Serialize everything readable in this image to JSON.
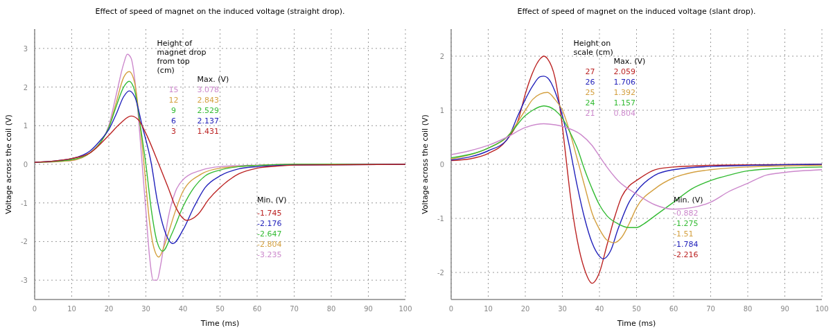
{
  "chart_data": [
    {
      "type": "line",
      "title": "Effect of speed of magnet on the induced voltage (straight drop).",
      "xlabel": "Time (ms)",
      "ylabel": "Voltage across the coil (V)",
      "legend_title": "Height of magnet drop from top (cm)",
      "legend": "top",
      "grid": true,
      "xlim": [
        0,
        100
      ],
      "ylim": [
        -3.5,
        3.5
      ],
      "xticks": [
        0,
        10,
        20,
        30,
        40,
        50,
        60,
        70,
        80,
        90,
        100
      ],
      "yticks": [
        -3,
        -2,
        -1,
        0,
        1,
        2,
        3
      ],
      "annotations": [
        "Max. (V)",
        "3.078",
        "2.843",
        "2.529",
        "2.137",
        "1.431",
        "Min. (V)",
        "-1.745",
        "-2.176",
        "-2.647",
        "-2.804",
        "-3.235"
      ],
      "series": [
        {
          "name": "15",
          "color": "#cc88cc",
          "x": [
            0,
            10,
            15,
            18,
            20,
            22,
            24,
            25,
            26,
            27,
            28,
            29,
            30,
            31,
            32,
            33,
            34,
            35,
            36,
            38,
            40,
            45,
            50,
            60,
            70,
            100
          ],
          "values": [
            0.05,
            0.1,
            0.3,
            0.6,
            1.0,
            1.8,
            2.6,
            2.85,
            2.75,
            2.2,
            1.2,
            0,
            -1.2,
            -2.4,
            -3.0,
            -3.0,
            -2.6,
            -2.0,
            -1.4,
            -0.7,
            -0.4,
            -0.15,
            -0.06,
            -0.02,
            0,
            0
          ]
        },
        {
          "name": "12",
          "color": "#d4a040",
          "x": [
            0,
            10,
            15,
            18,
            20,
            22,
            24,
            25.5,
            27,
            28,
            29.5,
            31,
            32,
            33.5,
            35,
            36,
            38,
            40,
            45,
            50,
            60,
            70,
            100
          ],
          "values": [
            0.05,
            0.1,
            0.3,
            0.6,
            0.95,
            1.6,
            2.25,
            2.4,
            2.1,
            1.4,
            0,
            -1.5,
            -2.1,
            -2.4,
            -2.1,
            -1.8,
            -1.2,
            -0.7,
            -0.25,
            -0.1,
            -0.03,
            0,
            0
          ]
        },
        {
          "name": "9",
          "color": "#33bb33",
          "x": [
            0,
            10,
            15,
            18,
            20,
            22,
            24,
            25.5,
            27,
            28.5,
            30,
            31.5,
            33,
            34.5,
            37,
            40,
            43,
            46,
            50,
            55,
            60,
            70,
            100
          ],
          "values": [
            0.05,
            0.12,
            0.3,
            0.6,
            0.95,
            1.5,
            2.0,
            2.15,
            1.9,
            1.0,
            0,
            -1.2,
            -2.0,
            -2.25,
            -1.8,
            -1.1,
            -0.6,
            -0.3,
            -0.15,
            -0.06,
            -0.03,
            0,
            0
          ]
        },
        {
          "name": "6",
          "color": "#2222bb",
          "x": [
            0,
            10,
            15,
            18,
            20,
            22,
            24,
            25.5,
            27,
            29,
            31.5,
            33,
            35,
            37.3,
            40,
            43,
            46,
            50,
            55,
            60,
            70,
            100
          ],
          "values": [
            0.05,
            0.15,
            0.35,
            0.65,
            0.9,
            1.3,
            1.75,
            1.9,
            1.75,
            1.0,
            0,
            -0.9,
            -1.7,
            -2.05,
            -1.7,
            -1.1,
            -0.6,
            -0.3,
            -0.12,
            -0.06,
            -0.02,
            0
          ]
        },
        {
          "name": "3",
          "color": "#bb2222",
          "x": [
            0,
            10,
            15,
            20,
            23,
            26,
            28,
            30,
            33.5,
            36,
            38,
            41,
            44,
            47,
            50,
            55,
            60,
            65,
            70,
            100
          ],
          "values": [
            0.05,
            0.15,
            0.3,
            0.75,
            1.05,
            1.25,
            1.15,
            0.8,
            0,
            -0.6,
            -1.1,
            -1.45,
            -1.3,
            -0.9,
            -0.6,
            -0.25,
            -0.1,
            -0.05,
            -0.02,
            0
          ]
        }
      ]
    },
    {
      "type": "line",
      "title": "Effect of speed of magnet on the induced voltage (slant drop).",
      "xlabel": "Time (ms)",
      "ylabel": "Voltage across the coil (V)",
      "legend_title": "Height on scale (cm)",
      "legend": "top",
      "grid": true,
      "xlim": [
        0,
        100
      ],
      "ylim": [
        -2.5,
        2.5
      ],
      "xticks": [
        0,
        10,
        20,
        30,
        40,
        50,
        60,
        70,
        80,
        90,
        100
      ],
      "yticks": [
        -2,
        -1,
        0,
        1,
        2
      ],
      "annotations": [
        "Max. (V)",
        "2.059",
        "1.706",
        "1.392",
        "1.157",
        "0.804",
        "Min. (V)",
        "-0.882",
        "-1.275",
        "-1.51",
        "-1.784",
        "-2.216"
      ],
      "series": [
        {
          "name": "27",
          "color": "#bb2222",
          "x": [
            0,
            5,
            10,
            15,
            18,
            20,
            22,
            24,
            25,
            26,
            28,
            30,
            31,
            32,
            34,
            36,
            38,
            40,
            42,
            44,
            46,
            48,
            50,
            55,
            60,
            70,
            100
          ],
          "values": [
            0.07,
            0.1,
            0.2,
            0.45,
            0.8,
            1.3,
            1.7,
            1.95,
            2.0,
            1.95,
            1.6,
            0.7,
            0.1,
            -0.5,
            -1.4,
            -1.95,
            -2.2,
            -2.0,
            -1.5,
            -1.0,
            -0.6,
            -0.4,
            -0.3,
            -0.1,
            -0.05,
            -0.02,
            0
          ]
        },
        {
          "name": "26",
          "color": "#2222bb",
          "x": [
            0,
            10,
            15,
            18,
            20,
            22,
            24,
            25,
            26,
            28,
            30,
            32,
            34,
            36,
            38,
            40,
            41,
            43,
            45,
            48,
            50,
            55,
            60,
            70,
            100
          ],
          "values": [
            0.08,
            0.25,
            0.45,
            0.9,
            1.2,
            1.45,
            1.62,
            1.63,
            1.6,
            1.35,
            0.9,
            0.3,
            -0.4,
            -1.0,
            -1.45,
            -1.7,
            -1.75,
            -1.6,
            -1.2,
            -0.7,
            -0.5,
            -0.2,
            -0.1,
            -0.04,
            0
          ]
        },
        {
          "name": "25",
          "color": "#d4a040",
          "x": [
            0,
            10,
            15,
            20,
            22,
            24,
            26,
            28,
            30,
            32,
            34,
            36,
            38,
            40,
            42,
            44,
            46,
            48,
            50,
            55,
            60,
            65,
            70,
            80,
            100
          ],
          "values": [
            0.1,
            0.3,
            0.5,
            1.0,
            1.2,
            1.3,
            1.33,
            1.2,
            1.0,
            0.6,
            0.1,
            -0.4,
            -0.9,
            -1.2,
            -1.4,
            -1.45,
            -1.35,
            -1.1,
            -0.8,
            -0.45,
            -0.25,
            -0.15,
            -0.1,
            -0.05,
            -0.02
          ]
        },
        {
          "name": "24",
          "color": "#33bb33",
          "x": [
            0,
            10,
            15,
            20,
            22,
            25,
            28,
            30,
            32,
            34,
            36,
            38,
            40,
            42,
            45,
            48,
            50,
            52,
            55,
            60,
            65,
            70,
            75,
            80,
            90,
            100
          ],
          "values": [
            0.12,
            0.3,
            0.5,
            0.9,
            1.0,
            1.08,
            1.0,
            0.85,
            0.6,
            0.3,
            -0.1,
            -0.45,
            -0.75,
            -0.95,
            -1.1,
            -1.17,
            -1.17,
            -1.1,
            -0.95,
            -0.7,
            -0.45,
            -0.3,
            -0.2,
            -0.12,
            -0.07,
            -0.05
          ]
        },
        {
          "name": "21",
          "color": "#cc88cc",
          "x": [
            0,
            5,
            10,
            15,
            20,
            25,
            28,
            30,
            35,
            38,
            40,
            42,
            45,
            50,
            55,
            60,
            65,
            70,
            75,
            80,
            85,
            90,
            100
          ],
          "values": [
            0.18,
            0.25,
            0.35,
            0.5,
            0.68,
            0.75,
            0.73,
            0.7,
            0.55,
            0.35,
            0.15,
            -0.05,
            -0.3,
            -0.55,
            -0.75,
            -0.83,
            -0.8,
            -0.7,
            -0.5,
            -0.35,
            -0.2,
            -0.15,
            -0.1
          ]
        }
      ]
    }
  ]
}
